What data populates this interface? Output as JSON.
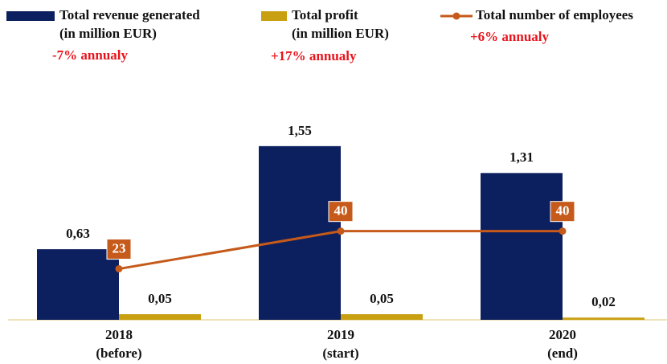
{
  "chart_data": {
    "type": "bar",
    "categories": [
      "2018\n(before)",
      "2019\n(start)",
      "2020\n(end)"
    ],
    "series": [
      {
        "name": "Total revenue generated\n(in million EUR)",
        "type": "bar",
        "color": "#0c1f5e",
        "values": [
          0.63,
          1.55,
          1.31
        ],
        "value_labels": [
          "0,63",
          "1,55",
          "1,31"
        ]
      },
      {
        "name": "Total profit\n(in million EUR)",
        "type": "bar",
        "color": "#c9a012",
        "values": [
          0.05,
          0.05,
          0.02
        ],
        "value_labels": [
          "0,05",
          "0,05",
          "0,02"
        ]
      },
      {
        "name": "Total number of employees",
        "type": "line",
        "axis": "y2",
        "color": "#c55a1a",
        "values": [
          23,
          40,
          40
        ]
      }
    ],
    "annotations": [
      "-7% annualy",
      "+17% annualy",
      "+6% annualy"
    ],
    "ylim": [
      0,
      1.8
    ],
    "y2lim": [
      0,
      91
    ]
  }
}
